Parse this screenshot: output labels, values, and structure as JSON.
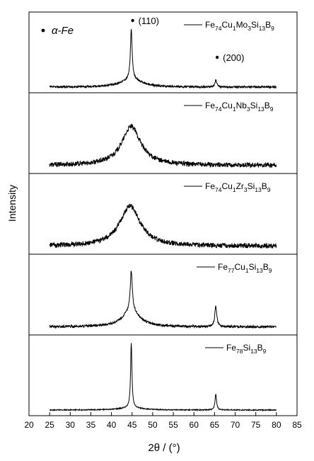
{
  "chart_data": {
    "type": "line",
    "xlabel": "2θ / (°)",
    "ylabel": "Intensity",
    "xlim": [
      20,
      85
    ],
    "x_ticks": [
      "20",
      "25",
      "30",
      "35",
      "40",
      "45",
      "50",
      "55",
      "60",
      "65",
      "70",
      "75",
      "80",
      "85"
    ],
    "marker_legend": "α-Fe",
    "panels": [
      {
        "series": [
          {
            "name": "Fe74Cu1Mo3Si13B9",
            "peaks": [
              {
                "x": 44.8,
                "height": 0.62,
                "width": 0.25
              },
              {
                "x": 65.3,
                "height": 0.09,
                "width": 0.25
              }
            ],
            "broad_peak": {
              "x": 44.8,
              "height": 0.1,
              "width": 3.0
            },
            "baseline": 0.07,
            "noise": 0.012
          }
        ],
        "annotations": [
          {
            "text": "(110)",
            "x": 44.8
          },
          {
            "text": "(200)",
            "x": 65.3
          }
        ]
      },
      {
        "series": [
          {
            "name": "Fe74Cu1Nb3Si13B9",
            "peaks": [],
            "broad_peak": {
              "x": 44.8,
              "height": 0.48,
              "width": 2.8
            },
            "baseline": 0.1,
            "noise": 0.03
          }
        ],
        "annotations": []
      },
      {
        "series": [
          {
            "name": "Fe74Cu1Zr3Si13B9",
            "peaks": [],
            "broad_peak": {
              "x": 44.5,
              "height": 0.5,
              "width": 3.0
            },
            "baseline": 0.1,
            "noise": 0.03
          }
        ],
        "annotations": []
      },
      {
        "series": [
          {
            "name": "Fe77Cu1Si13B9",
            "peaks": [
              {
                "x": 44.8,
                "height": 0.5,
                "width": 0.3
              },
              {
                "x": 65.3,
                "height": 0.25,
                "width": 0.3
              }
            ],
            "broad_peak": {
              "x": 44.8,
              "height": 0.2,
              "width": 2.5
            },
            "baseline": 0.1,
            "noise": 0.015
          }
        ],
        "annotations": []
      },
      {
        "series": [
          {
            "name": "Fe78Si13B9",
            "peaks": [
              {
                "x": 44.8,
                "height": 0.8,
                "width": 0.2
              },
              {
                "x": 65.3,
                "height": 0.2,
                "width": 0.22
              }
            ],
            "broad_peak": {
              "x": 44.8,
              "height": 0.03,
              "width": 3.0
            },
            "baseline": 0.07,
            "noise": 0.006
          }
        ],
        "annotations": []
      }
    ]
  }
}
